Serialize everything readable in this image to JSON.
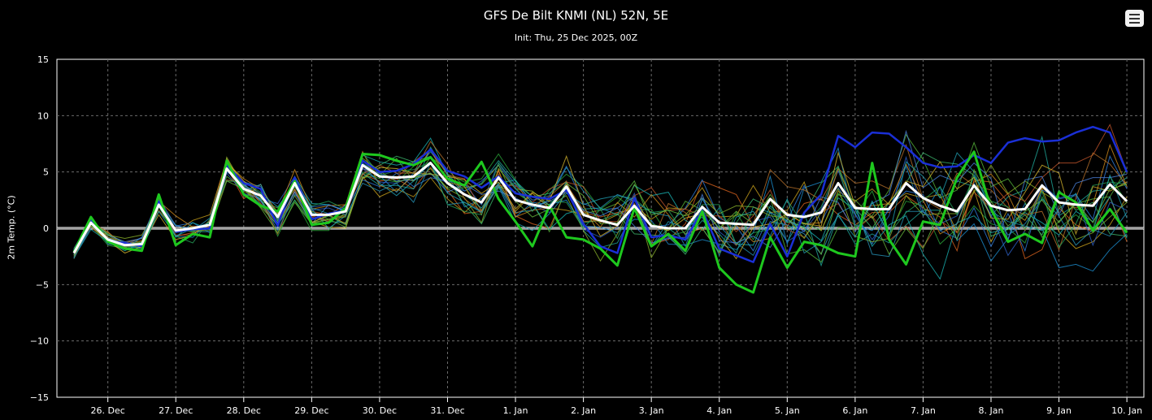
{
  "header": {
    "title": "GFS De Bilt KNMI (NL) 52N, 5E",
    "subtitle": "Init: Thu, 25 Dec 2025, 00Z"
  },
  "colors": {
    "background": "#000000",
    "grid": "#6b6b6b",
    "mean": "#ffffff",
    "operational": "#1ec81e",
    "control": "#1a2fd6",
    "zero_line": "#ffffff"
  },
  "icons": {
    "menu": "hamburger-menu-icon"
  },
  "chart_data": {
    "type": "line",
    "title": "GFS De Bilt KNMI (NL) 52N, 5E",
    "subtitle": "Init: Thu, 25 Dec 2025, 00Z",
    "xlabel": "",
    "ylabel": "2m Temp. (°C)",
    "ylim": [
      -15,
      15
    ],
    "yticks": [
      -15,
      -10,
      -5,
      0,
      5,
      10,
      15
    ],
    "ytick_labels": [
      "−15",
      "−10",
      "−5",
      "0",
      "5",
      "10",
      "15"
    ],
    "xlim_days": [
      0.25,
      16.25
    ],
    "xticks_days": [
      1,
      2,
      3,
      4,
      5,
      6,
      7,
      8,
      9,
      10,
      11,
      12,
      13,
      14,
      15,
      16
    ],
    "xtick_labels": [
      "26. Dec",
      "27. Dec",
      "28. Dec",
      "29. Dec",
      "30. Dec",
      "31. Dec",
      "1. Jan",
      "2. Jan",
      "3. Jan",
      "4. Jan",
      "5. Jan",
      "6. Jan",
      "7. Jan",
      "8. Jan",
      "9. Jan",
      "10. Jan"
    ],
    "grid": true,
    "legend": "none",
    "series": [
      {
        "role": "mean",
        "color": "#ffffff",
        "x": [
          0.5,
          0.75,
          1,
          1.25,
          1.5,
          1.75,
          2,
          2.25,
          2.5,
          2.75,
          3,
          3.25,
          3.5,
          3.75,
          4,
          4.25,
          4.5,
          4.75,
          5,
          5.25,
          5.5,
          5.75,
          6,
          6.25,
          6.5,
          6.75,
          7,
          7.25,
          7.5,
          7.75,
          8,
          8.25,
          8.5,
          8.75,
          9,
          9.25,
          9.5,
          9.75,
          10,
          10.25,
          10.5,
          10.75,
          11,
          11.25,
          11.5,
          11.75,
          12,
          12.25,
          12.5,
          12.75,
          13,
          13.25,
          13.5,
          13.75,
          14,
          14.25,
          14.5,
          14.75,
          15,
          15.25,
          15.5,
          15.75,
          16
        ],
        "y": [
          -2.2,
          0.5,
          -1.0,
          -1.5,
          -1.4,
          2.1,
          -0.2,
          0.0,
          0.3,
          5.3,
          3.5,
          2.9,
          1.0,
          4.0,
          1.2,
          1.2,
          1.5,
          5.6,
          4.6,
          4.5,
          4.6,
          5.8,
          4.0,
          3.0,
          2.3,
          4.5,
          2.5,
          2.1,
          1.8,
          3.7,
          1.2,
          0.7,
          0.3,
          2.0,
          0.2,
          0.0,
          0.0,
          1.9,
          0.5,
          0.4,
          0.3,
          2.6,
          1.2,
          1.0,
          1.4,
          4.0,
          1.8,
          1.7,
          1.7,
          4.0,
          2.7,
          2.0,
          1.5,
          3.8,
          2.0,
          1.6,
          1.7,
          3.8,
          2.3,
          2.1,
          2.0,
          3.9,
          2.4
        ]
      },
      {
        "role": "control",
        "color": "#1a2fd6",
        "x": [
          0.5,
          0.75,
          1,
          1.25,
          1.5,
          1.75,
          2,
          2.25,
          2.5,
          2.75,
          3,
          3.25,
          3.5,
          3.75,
          4,
          4.25,
          4.5,
          4.75,
          5,
          5.25,
          5.5,
          5.75,
          6,
          6.25,
          6.5,
          6.75,
          7,
          7.25,
          7.5,
          7.75,
          8,
          8.25,
          8.5,
          8.75,
          9,
          9.25,
          9.5,
          9.75,
          10,
          10.25,
          10.5,
          10.75,
          11,
          11.25,
          11.5,
          11.75,
          12,
          12.25,
          12.5,
          12.75,
          13,
          13.25,
          13.5,
          13.75,
          14,
          14.25,
          14.5,
          14.75,
          15,
          15.25,
          15.5,
          15.75,
          16
        ],
        "y": [
          -2.0,
          0.8,
          -1.1,
          -1.3,
          -1.6,
          2.4,
          -0.3,
          -0.1,
          0.0,
          5.6,
          4.0,
          3.5,
          0.2,
          4.5,
          0.8,
          1.3,
          1.6,
          6.0,
          5.0,
          5.1,
          5.7,
          7.0,
          5.1,
          4.6,
          3.6,
          4.6,
          3.1,
          2.8,
          2.6,
          3.4,
          0.4,
          -1.6,
          -2.2,
          2.7,
          -0.8,
          -0.6,
          -1.0,
          1.6,
          -1.8,
          -2.4,
          -3.0,
          0.4,
          -2.5,
          1.4,
          3.0,
          8.2,
          7.2,
          8.5,
          8.4,
          7.2,
          5.8,
          5.4,
          5.5,
          6.5,
          5.8,
          7.6,
          8.0,
          7.7,
          7.8,
          8.5,
          9.0,
          8.5,
          5.0
        ]
      },
      {
        "role": "operational",
        "color": "#1ec81e",
        "x": [
          0.5,
          0.75,
          1,
          1.25,
          1.5,
          1.75,
          2,
          2.25,
          2.5,
          2.75,
          3,
          3.25,
          3.5,
          3.75,
          4,
          4.25,
          4.5,
          4.75,
          5,
          5.25,
          5.5,
          5.75,
          6,
          6.25,
          6.5,
          6.75,
          7,
          7.25,
          7.5,
          7.75,
          8,
          8.25,
          8.5,
          8.75,
          9,
          9.25,
          9.5,
          9.75,
          10,
          10.25,
          10.5,
          10.75,
          11,
          11.25,
          11.5,
          11.75,
          12,
          12.25,
          12.5,
          12.75,
          13,
          13.25,
          13.5,
          13.75,
          14,
          14.25,
          14.5,
          14.75,
          15,
          15.25,
          15.5,
          15.75,
          16
        ],
        "y": [
          -2.1,
          1.0,
          -1.2,
          -1.8,
          -2.0,
          3.0,
          -1.5,
          -0.5,
          -0.8,
          6.0,
          3.0,
          2.0,
          1.5,
          4.2,
          0.3,
          0.5,
          1.8,
          6.6,
          6.5,
          6.0,
          5.6,
          6.3,
          4.4,
          3.8,
          5.9,
          2.6,
          0.6,
          -1.6,
          2.0,
          -0.8,
          -1.0,
          -1.8,
          -3.3,
          1.8,
          -1.6,
          -0.5,
          -2.0,
          1.5,
          -3.5,
          -5.0,
          -5.7,
          -0.8,
          -3.5,
          -1.2,
          -1.5,
          -2.2,
          -2.5,
          5.8,
          -1.0,
          -3.2,
          0.6,
          0.3,
          4.5,
          6.8,
          1.7,
          -1.2,
          -0.5,
          -1.3,
          3.2,
          2.3,
          -0.2,
          1.7,
          -0.4
        ]
      }
    ],
    "member_colors": [
      "#d9631e",
      "#2aa63a",
      "#1c8fd1",
      "#1fa89a",
      "#c9a11c",
      "#2e7cd9",
      "#56b53a",
      "#c2552a",
      "#19b0b0",
      "#8ab12a",
      "#2d5fc4",
      "#ce8a1b",
      "#3bb56b",
      "#2693b8",
      "#b8702b",
      "#24a15a",
      "#4a7fd8",
      "#d1b22c",
      "#1f9db0",
      "#68b83c"
    ],
    "members": []
  }
}
